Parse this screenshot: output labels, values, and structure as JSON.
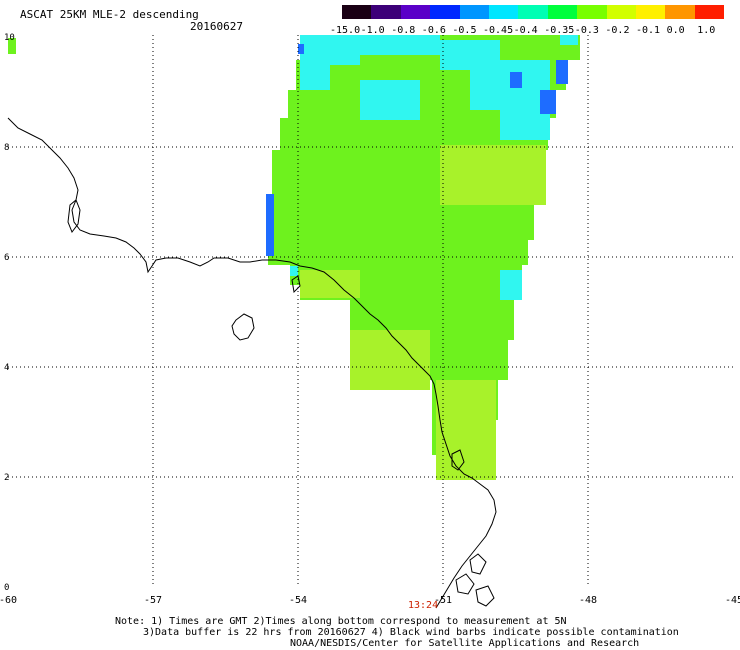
{
  "title": "ASCAT 25KM MLE-2 descending",
  "date": "20160627",
  "legend": {
    "labels": [
      "-15.0",
      "-1.0",
      "-0.8",
      "-0.6",
      "-0.5",
      "-0.45",
      "-0.4",
      "-0.35",
      "-0.3",
      "-0.2",
      "-0.1",
      "0.0",
      "1.0"
    ],
    "colors": [
      "#1a0014",
      "#3c0078",
      "#5a00c8",
      "#0028ff",
      "#0096ff",
      "#00e6ff",
      "#00ffb4",
      "#00ff3c",
      "#78ff00",
      "#d2ff00",
      "#fff000",
      "#ff9600",
      "#ff1e00"
    ]
  },
  "axes": {
    "x_ticks": [
      "-60",
      "-57",
      "-54",
      "-51",
      "-48",
      "-45"
    ],
    "y_ticks": [
      "0",
      "2",
      "4",
      "6",
      "8",
      "10"
    ]
  },
  "time_label": "13:24",
  "notes": {
    "line1": "Note: 1) Times are GMT 2)Times along bottom correspond to measurement at 5N",
    "line2": "3)Data buffer is 22 hrs from 20160627 4) Black wind barbs indicate possible contamination",
    "line3": "NOAA/NESDIS/Center for Satellite Applications and Research"
  },
  "colors": {
    "grid": "#000000",
    "coast": "#000000",
    "time": "#cc2200",
    "swath_main": "#6ef21e",
    "swath_light": "#a8f22a",
    "swath_cyan": "#30f6f0",
    "swath_blue": "#1e6cff"
  }
}
